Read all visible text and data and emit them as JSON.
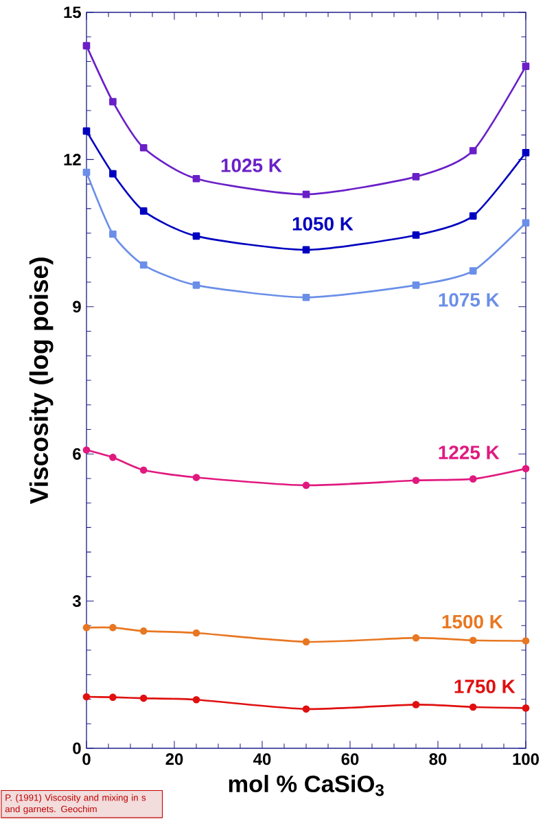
{
  "chart_data": {
    "type": "line",
    "xlabel": "mol % CaSiO$_{3}$",
    "ylabel": "Viscosity (log poise)",
    "x": [
      0,
      6,
      13,
      25,
      50,
      75,
      88,
      100
    ],
    "xlim": [
      0,
      100
    ],
    "ylim": [
      0,
      15
    ],
    "xticks": [
      0,
      20,
      40,
      60,
      80,
      100
    ],
    "yticks": [
      0,
      3,
      6,
      9,
      12,
      15
    ],
    "line_style": "solid",
    "annotations": [
      "P. (1991) Viscosity and mixing in s and garnets. Geochim"
    ],
    "series": [
      {
        "name": "1025 K",
        "color": "#6a1fc8",
        "marker": "square",
        "values": [
          14.32,
          13.18,
          12.24,
          11.61,
          11.29,
          11.65,
          12.18,
          13.9
        ]
      },
      {
        "name": "1050 K",
        "color": "#0000c0",
        "marker": "square",
        "values": [
          12.58,
          11.71,
          10.95,
          10.44,
          10.16,
          10.46,
          10.85,
          12.14
        ]
      },
      {
        "name": "1075 K",
        "color": "#6b8fe8",
        "marker": "square",
        "values": [
          11.74,
          10.48,
          9.85,
          9.44,
          9.19,
          9.44,
          9.73,
          10.71
        ]
      },
      {
        "name": "1225 K",
        "color": "#e0197f",
        "marker": "circle",
        "values": [
          6.08,
          5.93,
          5.67,
          5.52,
          5.36,
          5.46,
          5.49,
          5.7
        ]
      },
      {
        "name": "1500 K",
        "color": "#e87722",
        "marker": "circle",
        "values": [
          2.46,
          2.46,
          2.39,
          2.35,
          2.17,
          2.25,
          2.2,
          2.19
        ]
      },
      {
        "name": "1750 K",
        "color": "#e01010",
        "marker": "circle",
        "values": [
          1.05,
          1.04,
          1.02,
          0.99,
          0.8,
          0.89,
          0.84,
          0.82
        ]
      }
    ]
  }
}
